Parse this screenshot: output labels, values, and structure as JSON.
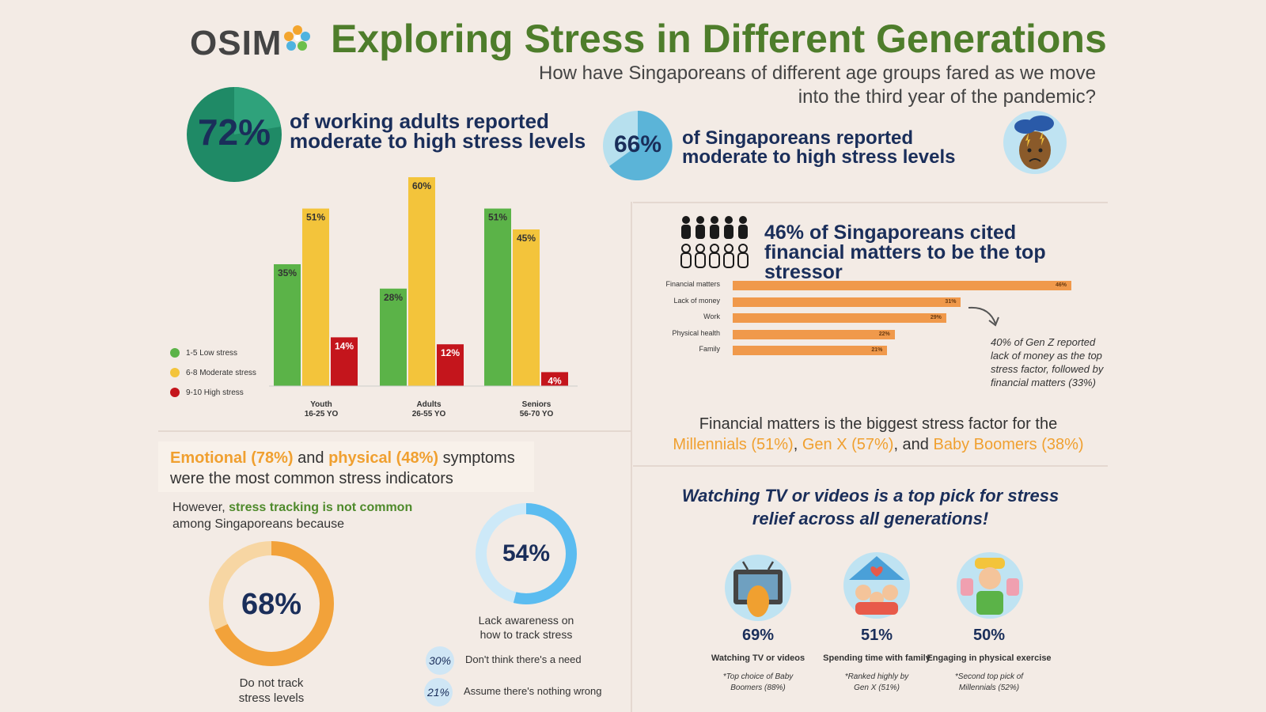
{
  "header": {
    "logo": "OSIM",
    "title": "Exploring Stress in Different Generations",
    "subtitle": "How have Singaporeans of different age groups fared as we move into the third year of the pandemic?"
  },
  "stats": {
    "working_adults_pct": "72%",
    "working_adults_text": "of working adults reported moderate to high stress levels",
    "singaporeans_pct": "66%",
    "singaporeans_text": "of Singaporeans reported moderate to high stress levels"
  },
  "colors": {
    "low": "#5bb348",
    "moderate": "#f3c43b",
    "high": "#c4151c",
    "financial_bar": "#f0994b",
    "ring_orange": "#f2a23a",
    "ring_blue": "#5bbcf0"
  },
  "chart_data": [
    {
      "type": "bar",
      "categories": [
        "Youth\n16-25 YO",
        "Adults\n26-55 YO",
        "Seniors\n56-70 YO"
      ],
      "category_names": [
        "Youth",
        "Adults",
        "Seniors"
      ],
      "category_ages": [
        "16-25 YO",
        "26-55 YO",
        "56-70 YO"
      ],
      "series": [
        {
          "name": "1-5 Low stress",
          "values": [
            35,
            28,
            51
          ]
        },
        {
          "name": "6-8 Moderate stress",
          "values": [
            51,
            60,
            45
          ]
        },
        {
          "name": "9-10 High stress",
          "values": [
            14,
            12,
            4
          ]
        }
      ],
      "ylim": [
        0,
        60
      ],
      "legend": "left"
    },
    {
      "type": "bar",
      "orientation": "horizontal",
      "title": "46% of Singaporeans cited financial matters to be the top stressor",
      "categories": [
        "Financial matters",
        "Lack of money",
        "Work",
        "Physical health",
        "Family"
      ],
      "values": [
        46,
        31,
        29,
        22,
        21
      ],
      "xlim": [
        0,
        46
      ]
    }
  ],
  "financial": {
    "title": "46% of Singaporeans cited financial matters to be the top stressor",
    "genz_note": "40% of Gen Z reported lack of money as the top stress factor, followed by financial matters (33%)",
    "summary_prefix": "Financial matters is the biggest stress factor for the",
    "millennials": "Millennials (51%)",
    "genx": "Gen X (57%)",
    "boomers": "Baby Boomers (38%)",
    "sep1": ",",
    "sep2": ", and"
  },
  "symptoms": {
    "emotional": "Emotional (78%)",
    "and": "and",
    "physical": "physical (48%)",
    "rest": "symptoms were the most common stress indicators",
    "however": "However,",
    "tracking": "stress tracking is not common",
    "among": "among Singaporeans because"
  },
  "tracking": {
    "no_track_pct": "68%",
    "no_track_value": 68,
    "no_track_label": "Do not track stress levels",
    "lack_pct": "54%",
    "lack_value": 54,
    "lack_label": "Lack awareness on how to track stress",
    "reasons": [
      {
        "pct": "30%",
        "text": "Don't think there's a need"
      },
      {
        "pct": "21%",
        "text": "Assume there's nothing wrong"
      }
    ]
  },
  "relief": {
    "title": "Watching TV or videos is a top pick for stress relief across all generations!",
    "items": [
      {
        "pct": "69%",
        "label": "Watching TV or videos",
        "note": "*Top choice of Baby Boomers (88%)"
      },
      {
        "pct": "51%",
        "label": "Spending time with family",
        "note": "*Ranked highly by Gen X (51%)"
      },
      {
        "pct": "50%",
        "label": "Engaging in physical exercise",
        "note": "*Second top pick of Millennials (52%)"
      }
    ]
  }
}
